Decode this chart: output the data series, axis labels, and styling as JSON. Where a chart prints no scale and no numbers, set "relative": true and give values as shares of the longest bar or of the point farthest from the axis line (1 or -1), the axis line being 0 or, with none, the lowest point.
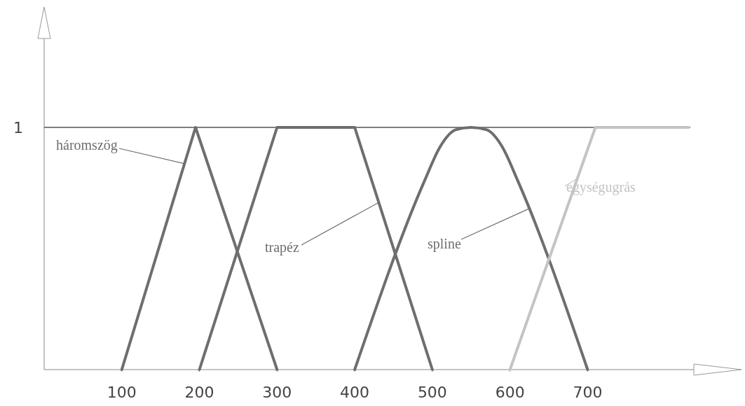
{
  "chart_data": {
    "type": "line",
    "relative": true,
    "xlim": [
      0,
      900
    ],
    "xticks": [
      100,
      200,
      300,
      400,
      500,
      600,
      700
    ],
    "grid": false,
    "ref_lines": [
      {
        "axis": "y",
        "value": 1,
        "label": "1",
        "color": "#555555"
      }
    ],
    "series": [
      {
        "name": "háromszög",
        "color": "#6e6e6e",
        "x": [
          100,
          195,
          300
        ],
        "values": [
          0,
          1,
          0
        ]
      },
      {
        "name": "trapéz",
        "color": "#6e6e6e",
        "x": [
          200,
          300,
          400,
          500
        ],
        "values": [
          0,
          1,
          1,
          0
        ]
      },
      {
        "name": "spline",
        "color": "#6e6e6e",
        "x": [
          400,
          490,
          510,
          530,
          550,
          570,
          590,
          610,
          700
        ],
        "values": [
          0,
          0.78,
          0.92,
          0.99,
          1,
          0.99,
          0.92,
          0.78,
          0
        ]
      },
      {
        "name": "egységugrás",
        "color": "#c4c4c4",
        "x": [
          600,
          710,
          830
        ],
        "values": [
          0,
          1,
          1
        ]
      }
    ]
  }
}
